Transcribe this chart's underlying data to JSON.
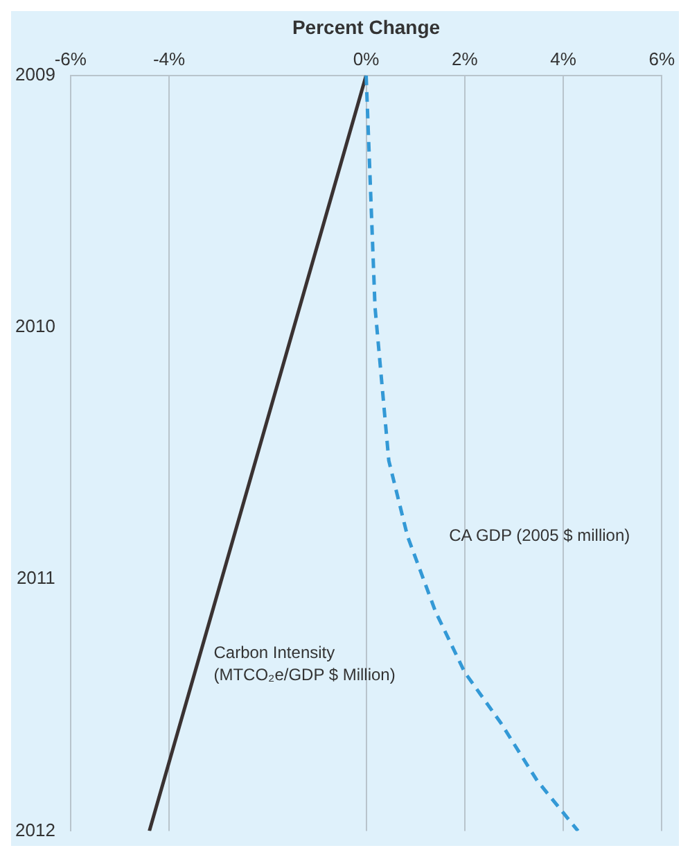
{
  "chart_data": {
    "type": "line",
    "orientation": "horizontal",
    "xlabel": "Percent Change",
    "xlim": [
      -6,
      6
    ],
    "xticks": [
      {
        "value": -6,
        "label": "-6%"
      },
      {
        "value": -4,
        "label": "-4%"
      },
      {
        "value": 0,
        "label": "0%"
      },
      {
        "value": 2,
        "label": "2%"
      },
      {
        "value": 4,
        "label": "4%"
      },
      {
        "value": 6,
        "label": "6%"
      }
    ],
    "ylim": [
      2012,
      2009
    ],
    "yticks": [
      2009,
      2010,
      2011,
      2012
    ],
    "grid": "x",
    "legend": false,
    "marker": "none",
    "series": [
      {
        "name": "CA GDP (2005 $ million)",
        "color": "#3399d6",
        "line_style": "dashed",
        "x": [
          2009,
          2009.92,
          2010.53,
          2010.83,
          2011.13,
          2011.37,
          2011.57,
          2011.8,
          2012
        ],
        "values": [
          0,
          0.18,
          0.46,
          0.84,
          1.41,
          2.0,
          2.73,
          3.47,
          4.3
        ]
      },
      {
        "name": "Carbon Intensity (MTCO₂e/GDP $ Million)",
        "color": "#3a3232",
        "line_style": "solid",
        "x": [
          2009,
          2012
        ],
        "values": [
          0,
          -4.4
        ]
      }
    ]
  }
}
